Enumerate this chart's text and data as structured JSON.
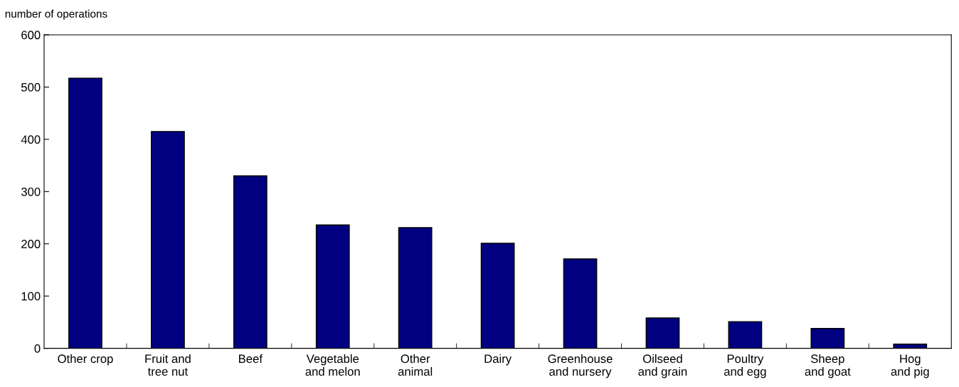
{
  "chart_data": {
    "type": "bar",
    "ylabel": "number of operations",
    "categories": [
      "Other crop",
      "Fruit and\ntree nut",
      "Beef",
      "Vegetable\nand melon",
      "Other\nanimal",
      "Dairy",
      "Greenhouse\nand nursery",
      "Oilseed\nand grain",
      "Poultry\nand egg",
      "Sheep\nand goat",
      "Hog\nand pig"
    ],
    "values": [
      517,
      415,
      330,
      236,
      231,
      201,
      171,
      58,
      51,
      38,
      8
    ],
    "color": "#000080",
    "ylim": [
      0,
      600
    ],
    "yticks": [
      0,
      100,
      200,
      300,
      400,
      500,
      600
    ],
    "grid": false
  }
}
